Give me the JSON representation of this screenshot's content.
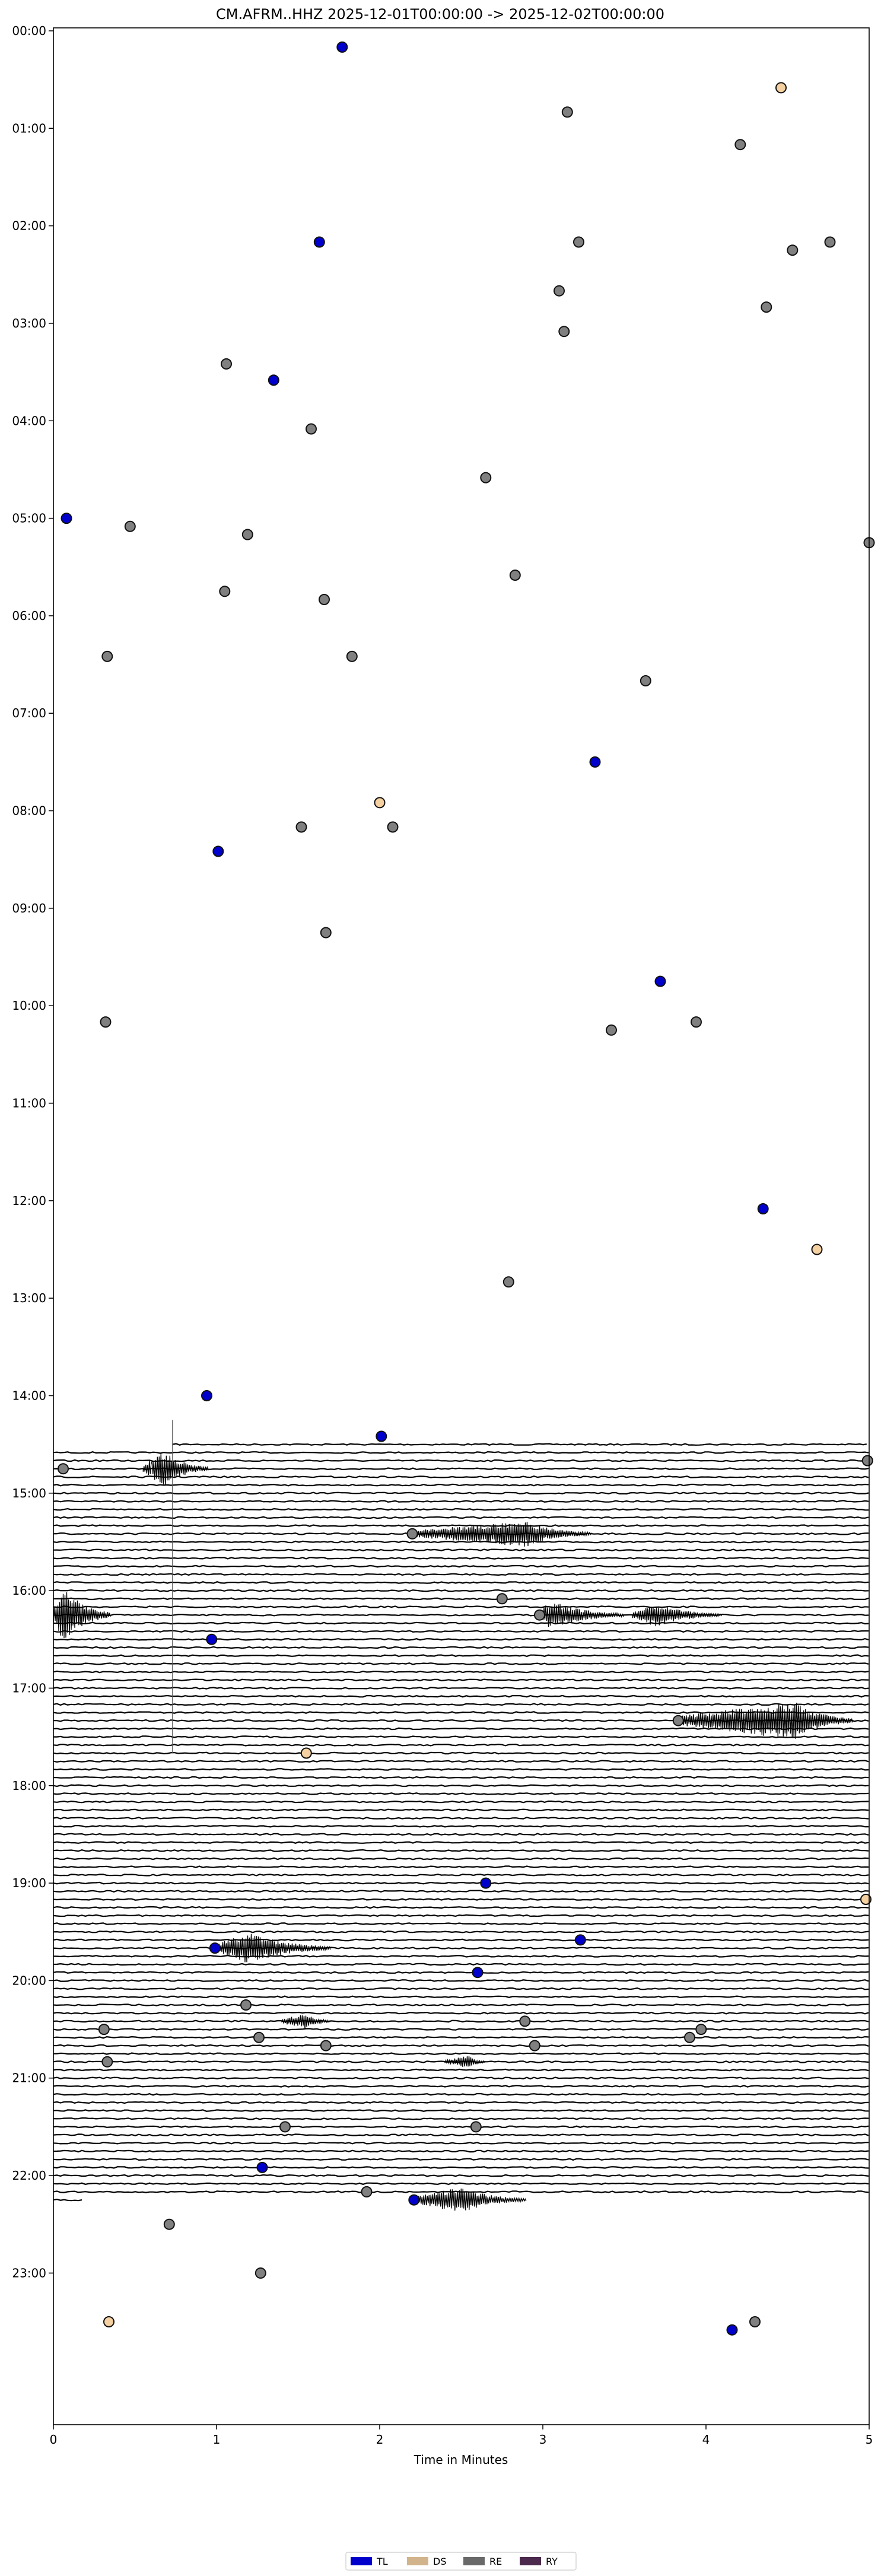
{
  "chart_data": {
    "type": "scatter",
    "title": "CM.AFRM..HHZ  2025-12-01T00:00:00 -> 2025-12-02T00:00:00",
    "xlabel": "Time in Minutes",
    "ylabel": "",
    "xlim": [
      0,
      5
    ],
    "ylim_minutes_of_day": [
      0,
      1440
    ],
    "x_ticks": [
      "0",
      "1",
      "2",
      "3",
      "4",
      "5"
    ],
    "y_ticks": [
      "00:00",
      "01:00",
      "02:00",
      "03:00",
      "04:00",
      "05:00",
      "06:00",
      "07:00",
      "08:00",
      "09:00",
      "10:00",
      "11:00",
      "12:00",
      "13:00",
      "14:00",
      "15:00",
      "16:00",
      "17:00",
      "18:00",
      "19:00",
      "20:00",
      "21:00",
      "22:00",
      "23:00"
    ],
    "trace_window": {
      "start": "14:30",
      "end": "22:15",
      "row_minutes": 5
    },
    "legend": {
      "placement": "bottom-center",
      "entries": [
        {
          "key": "TL",
          "label": "TL",
          "color": "#0000cc"
        },
        {
          "key": "DS",
          "label": "DS",
          "color": "#d2b48c"
        },
        {
          "key": "RE",
          "label": "RE",
          "color": "#696969"
        },
        {
          "key": "RY",
          "label": "RY",
          "color": "#4b2a4e"
        }
      ]
    },
    "marker_colors": {
      "TL": "#0000cc",
      "DS": "#f5d0a0",
      "RE": "#808080"
    },
    "events": [
      {
        "x": 1.77,
        "t": "00:10",
        "c": "TL"
      },
      {
        "x": 4.46,
        "t": "00:35",
        "c": "DS"
      },
      {
        "x": 3.15,
        "t": "00:50",
        "c": "RE"
      },
      {
        "x": 4.21,
        "t": "01:10",
        "c": "RE"
      },
      {
        "x": 1.63,
        "t": "02:10",
        "c": "TL"
      },
      {
        "x": 3.22,
        "t": "02:10",
        "c": "RE"
      },
      {
        "x": 4.53,
        "t": "02:15",
        "c": "RE"
      },
      {
        "x": 4.76,
        "t": "02:10",
        "c": "RE"
      },
      {
        "x": 3.1,
        "t": "02:40",
        "c": "RE"
      },
      {
        "x": 4.37,
        "t": "02:50",
        "c": "RE"
      },
      {
        "x": 3.13,
        "t": "03:05",
        "c": "RE"
      },
      {
        "x": 1.06,
        "t": "03:25",
        "c": "RE"
      },
      {
        "x": 1.35,
        "t": "03:35",
        "c": "TL"
      },
      {
        "x": 1.58,
        "t": "04:05",
        "c": "RE"
      },
      {
        "x": 2.65,
        "t": "04:35",
        "c": "RE"
      },
      {
        "x": 0.08,
        "t": "05:00",
        "c": "TL"
      },
      {
        "x": 0.47,
        "t": "05:05",
        "c": "RE"
      },
      {
        "x": 1.19,
        "t": "05:10",
        "c": "RE"
      },
      {
        "x": 5.0,
        "t": "05:15",
        "c": "RE"
      },
      {
        "x": 2.83,
        "t": "05:35",
        "c": "RE"
      },
      {
        "x": 1.05,
        "t": "05:45",
        "c": "RE"
      },
      {
        "x": 1.66,
        "t": "05:50",
        "c": "RE"
      },
      {
        "x": 0.33,
        "t": "06:25",
        "c": "RE"
      },
      {
        "x": 1.83,
        "t": "06:25",
        "c": "RE"
      },
      {
        "x": 3.63,
        "t": "06:40",
        "c": "RE"
      },
      {
        "x": 3.32,
        "t": "07:30",
        "c": "TL"
      },
      {
        "x": 2.0,
        "t": "07:55",
        "c": "DS"
      },
      {
        "x": 1.52,
        "t": "08:10",
        "c": "RE"
      },
      {
        "x": 2.08,
        "t": "08:10",
        "c": "RE"
      },
      {
        "x": 1.01,
        "t": "08:25",
        "c": "TL"
      },
      {
        "x": 1.67,
        "t": "09:15",
        "c": "RE"
      },
      {
        "x": 3.72,
        "t": "09:45",
        "c": "TL"
      },
      {
        "x": 0.32,
        "t": "10:10",
        "c": "RE"
      },
      {
        "x": 3.42,
        "t": "10:15",
        "c": "RE"
      },
      {
        "x": 3.94,
        "t": "10:10",
        "c": "RE"
      },
      {
        "x": 4.35,
        "t": "12:05",
        "c": "TL"
      },
      {
        "x": 4.68,
        "t": "12:30",
        "c": "DS"
      },
      {
        "x": 2.79,
        "t": "12:50",
        "c": "RE"
      },
      {
        "x": 0.94,
        "t": "14:00",
        "c": "TL"
      },
      {
        "x": 2.01,
        "t": "14:25",
        "c": "TL"
      },
      {
        "x": 0.06,
        "t": "14:45",
        "c": "RE"
      },
      {
        "x": 4.99,
        "t": "14:40",
        "c": "RE"
      },
      {
        "x": 2.2,
        "t": "15:25",
        "c": "RE"
      },
      {
        "x": 2.75,
        "t": "16:05",
        "c": "RE"
      },
      {
        "x": 2.98,
        "t": "16:15",
        "c": "RE"
      },
      {
        "x": 0.97,
        "t": "16:30",
        "c": "TL"
      },
      {
        "x": 3.83,
        "t": "17:20",
        "c": "RE"
      },
      {
        "x": 1.55,
        "t": "17:40",
        "c": "DS"
      },
      {
        "x": 2.65,
        "t": "19:00",
        "c": "TL"
      },
      {
        "x": 4.98,
        "t": "19:10",
        "c": "DS"
      },
      {
        "x": 3.23,
        "t": "19:35",
        "c": "TL"
      },
      {
        "x": 0.99,
        "t": "19:40",
        "c": "TL"
      },
      {
        "x": 2.6,
        "t": "19:55",
        "c": "TL"
      },
      {
        "x": 1.18,
        "t": "20:15",
        "c": "RE"
      },
      {
        "x": 0.31,
        "t": "20:30",
        "c": "RE"
      },
      {
        "x": 2.89,
        "t": "20:25",
        "c": "RE"
      },
      {
        "x": 3.97,
        "t": "20:30",
        "c": "RE"
      },
      {
        "x": 1.26,
        "t": "20:35",
        "c": "RE"
      },
      {
        "x": 3.9,
        "t": "20:35",
        "c": "RE"
      },
      {
        "x": 1.67,
        "t": "20:40",
        "c": "RE"
      },
      {
        "x": 2.95,
        "t": "20:40",
        "c": "RE"
      },
      {
        "x": 0.33,
        "t": "20:50",
        "c": "RE"
      },
      {
        "x": 1.42,
        "t": "21:30",
        "c": "RE"
      },
      {
        "x": 2.59,
        "t": "21:30",
        "c": "RE"
      },
      {
        "x": 1.28,
        "t": "21:55",
        "c": "TL"
      },
      {
        "x": 1.92,
        "t": "22:10",
        "c": "RE"
      },
      {
        "x": 2.21,
        "t": "22:15",
        "c": "TL"
      },
      {
        "x": 0.71,
        "t": "22:30",
        "c": "RE"
      },
      {
        "x": 1.27,
        "t": "23:00",
        "c": "RE"
      },
      {
        "x": 0.34,
        "t": "23:30",
        "c": "DS"
      },
      {
        "x": 4.3,
        "t": "23:30",
        "c": "RE"
      },
      {
        "x": 4.16,
        "t": "23:35",
        "c": "TL"
      }
    ],
    "signal_bursts": [
      {
        "t": "14:45",
        "x0": 0.55,
        "x1": 0.95,
        "amp": 2.2,
        "peak": 0.68
      },
      {
        "t": "15:25",
        "x0": 2.2,
        "x1": 3.3,
        "amp": 1.6,
        "peak": 2.9
      },
      {
        "t": "16:15",
        "x0": 0.0,
        "x1": 0.35,
        "amp": 3.5,
        "peak": 0.06
      },
      {
        "t": "16:15",
        "x0": 2.98,
        "x1": 3.5,
        "amp": 1.8,
        "peak": 3.05
      },
      {
        "t": "16:15",
        "x0": 3.55,
        "x1": 4.1,
        "amp": 1.5,
        "peak": 3.7
      },
      {
        "t": "17:20",
        "x0": 3.83,
        "x1": 4.9,
        "amp": 2.4,
        "peak": 4.55
      },
      {
        "t": "19:40",
        "x0": 1.0,
        "x1": 1.7,
        "amp": 2.0,
        "peak": 1.2
      },
      {
        "t": "20:25",
        "x0": 1.4,
        "x1": 1.7,
        "amp": 1.0,
        "peak": 1.55
      },
      {
        "t": "20:50",
        "x0": 2.4,
        "x1": 2.65,
        "amp": 0.8,
        "peak": 2.55
      },
      {
        "t": "22:15",
        "x0": 2.21,
        "x1": 2.9,
        "amp": 1.6,
        "peak": 2.5
      }
    ]
  }
}
